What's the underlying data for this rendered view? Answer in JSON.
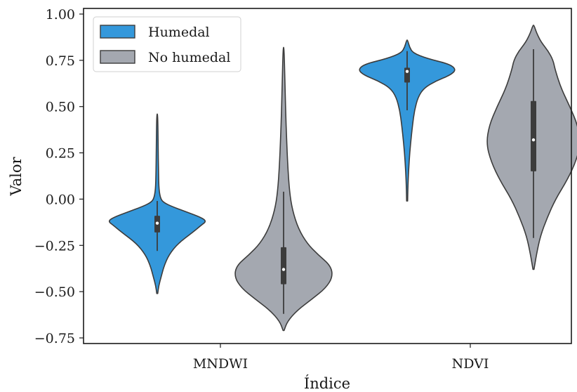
{
  "chart_data": {
    "type": "violin",
    "xlabel": "Índice",
    "ylabel": "Valor",
    "ylim": [
      -0.8,
      1.02
    ],
    "yticks": [
      1.0,
      0.75,
      0.5,
      0.25,
      0.0,
      -0.25,
      -0.5,
      -0.75
    ],
    "ytick_labels": [
      "1.00",
      "0.75",
      "0.50",
      "0.25",
      "0.00",
      "−0.25",
      "−0.50",
      "−0.75"
    ],
    "categories": [
      "MNDWI",
      "NDVI"
    ],
    "legend_position": "top-left",
    "grid": false,
    "series": [
      {
        "name": "Humedal",
        "color": "#3498db",
        "violins": [
          {
            "category": "MNDWI",
            "median": -0.13,
            "q1": -0.18,
            "q3": -0.09,
            "whisker_low": -0.28,
            "whisker_high": -0.01,
            "min": -0.51,
            "max": 0.46,
            "density": [
              [
                -0.51,
                0.01
              ],
              [
                -0.47,
                0.03
              ],
              [
                -0.42,
                0.08
              ],
              [
                -0.36,
                0.14
              ],
              [
                -0.3,
                0.24
              ],
              [
                -0.24,
                0.42
              ],
              [
                -0.18,
                0.72
              ],
              [
                -0.14,
                0.9
              ],
              [
                -0.12,
                1.0
              ],
              [
                -0.1,
                0.9
              ],
              [
                -0.07,
                0.6
              ],
              [
                -0.04,
                0.3
              ],
              [
                -0.02,
                0.14
              ],
              [
                0.0,
                0.07
              ],
              [
                0.05,
                0.035
              ],
              [
                0.15,
                0.025
              ],
              [
                0.3,
                0.018
              ],
              [
                0.46,
                0.01
              ]
            ]
          },
          {
            "category": "NDVI",
            "median": 0.69,
            "q1": 0.63,
            "q3": 0.71,
            "whisker_low": 0.48,
            "whisker_high": 0.8,
            "min": -0.01,
            "max": 0.86,
            "density": [
              [
                -0.01,
                0.01
              ],
              [
                0.1,
                0.02
              ],
              [
                0.2,
                0.04
              ],
              [
                0.3,
                0.07
              ],
              [
                0.4,
                0.11
              ],
              [
                0.48,
                0.15
              ],
              [
                0.55,
                0.22
              ],
              [
                0.6,
                0.34
              ],
              [
                0.64,
                0.6
              ],
              [
                0.67,
                0.88
              ],
              [
                0.7,
                1.0
              ],
              [
                0.73,
                0.86
              ],
              [
                0.76,
                0.4
              ],
              [
                0.79,
                0.12
              ],
              [
                0.82,
                0.05
              ],
              [
                0.86,
                0.01
              ]
            ]
          }
        ]
      },
      {
        "name": "No humedal",
        "color": "#a4a8b0",
        "violins": [
          {
            "category": "MNDWI",
            "median": -0.38,
            "q1": -0.46,
            "q3": -0.26,
            "whisker_low": -0.62,
            "whisker_high": 0.04,
            "min": -0.71,
            "max": 0.82,
            "density": [
              [
                -0.71,
                0.01
              ],
              [
                -0.66,
                0.08
              ],
              [
                -0.6,
                0.28
              ],
              [
                -0.54,
                0.58
              ],
              [
                -0.48,
                0.86
              ],
              [
                -0.42,
                1.0
              ],
              [
                -0.36,
                0.96
              ],
              [
                -0.3,
                0.7
              ],
              [
                -0.24,
                0.48
              ],
              [
                -0.16,
                0.3
              ],
              [
                -0.06,
                0.18
              ],
              [
                0.04,
                0.12
              ],
              [
                0.2,
                0.08
              ],
              [
                0.4,
                0.05
              ],
              [
                0.6,
                0.03
              ],
              [
                0.82,
                0.01
              ]
            ]
          },
          {
            "category": "NDVI",
            "median": 0.32,
            "q1": 0.15,
            "q3": 0.53,
            "whisker_low": -0.21,
            "whisker_high": 0.81,
            "min": -0.38,
            "max": 0.94,
            "density": [
              [
                -0.38,
                0.01
              ],
              [
                -0.3,
                0.06
              ],
              [
                -0.2,
                0.14
              ],
              [
                -0.1,
                0.28
              ],
              [
                0.0,
                0.45
              ],
              [
                0.1,
                0.68
              ],
              [
                0.2,
                0.86
              ],
              [
                0.3,
                0.96
              ],
              [
                0.4,
                0.9
              ],
              [
                0.5,
                0.74
              ],
              [
                0.6,
                0.56
              ],
              [
                0.7,
                0.44
              ],
              [
                0.75,
                0.4
              ],
              [
                0.8,
                0.3
              ],
              [
                0.85,
                0.15
              ],
              [
                0.9,
                0.06
              ],
              [
                0.94,
                0.01
              ]
            ]
          }
        ]
      }
    ]
  }
}
